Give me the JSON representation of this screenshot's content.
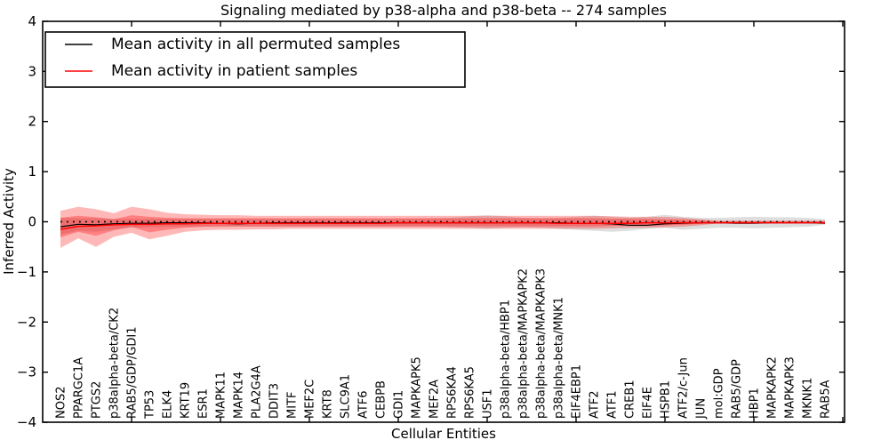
{
  "chart_data": {
    "type": "line",
    "title": "Signaling mediated by p38-alpha and p38-beta -- 274 samples",
    "xlabel": "Cellular Entities",
    "ylabel": "Inferred Activity",
    "ylim": [
      -4,
      4
    ],
    "xlim": [
      0,
      45.1
    ],
    "grid": false,
    "legend_position": "upper left",
    "y_tick_values": [
      -4,
      -3,
      -2,
      -1,
      0,
      1,
      2,
      3,
      4
    ],
    "y_tick_labels": [
      "−4",
      "−3",
      "−2",
      "−1",
      "0",
      "1",
      "2",
      "3",
      "4"
    ],
    "x_tick_values": [
      5,
      10,
      15,
      20,
      25,
      30,
      35,
      40,
      45
    ],
    "categories": [
      "NOS2",
      "PPARGC1A",
      "PTGS2",
      "p38alpha-beta/CK2",
      "RAB5/GDP/GDI1",
      "TP53",
      "ELK4",
      "KRT19",
      "ESR1",
      "MAPK11",
      "MAPK14",
      "PLA2G4A",
      "DDIT3",
      "MITF",
      "MEF2C",
      "KRT8",
      "SLC9A1",
      "ATF6",
      "CEBPB",
      "GDI1",
      "MAPKAPK5",
      "MEF2A",
      "RPS6KA4",
      "RPS6KA5",
      "USF1",
      "p38alpha-beta/HBP1",
      "p38alpha-beta/MAPKAPK2",
      "p38alpha-beta/MAPKAPK3",
      "p38alpha-beta/MNK1",
      "EIF4EBP1",
      "ATF2",
      "ATF1",
      "CREB1",
      "EIF4E",
      "HSPB1",
      "ATF2/c-Jun",
      "JUN",
      "mol:GDP",
      "RAB5/GDP",
      "HBP1",
      "MAPKAPK2",
      "MAPKAPK3",
      "MKNK1",
      "RAB5A"
    ],
    "zero_line": {
      "value": 0,
      "color": "#000000",
      "style": "dotted"
    },
    "series": [
      {
        "name": "Mean activity in all permuted samples",
        "color": "#000000",
        "style": "solid",
        "values": [
          -0.1,
          -0.05,
          -0.06,
          -0.04,
          -0.03,
          -0.03,
          -0.02,
          -0.02,
          -0.02,
          -0.03,
          -0.04,
          -0.03,
          -0.02,
          -0.02,
          -0.02,
          -0.02,
          -0.02,
          -0.02,
          -0.02,
          -0.02,
          -0.02,
          -0.02,
          -0.02,
          -0.02,
          -0.02,
          -0.02,
          -0.02,
          -0.02,
          -0.02,
          -0.03,
          -0.03,
          -0.04,
          -0.07,
          -0.07,
          -0.04,
          -0.03,
          -0.02,
          -0.02,
          -0.03,
          -0.03,
          -0.02,
          -0.02,
          -0.02,
          -0.03
        ]
      },
      {
        "name": "Mean activity in patient samples",
        "color": "#ff0000",
        "style": "solid",
        "values": [
          -0.15,
          -0.09,
          -0.08,
          -0.06,
          -0.05,
          -0.05,
          -0.04,
          -0.04,
          -0.03,
          -0.03,
          -0.03,
          -0.03,
          -0.03,
          -0.03,
          -0.03,
          -0.03,
          -0.03,
          -0.03,
          -0.03,
          -0.02,
          -0.02,
          -0.02,
          -0.02,
          -0.02,
          -0.02,
          -0.02,
          -0.02,
          -0.02,
          -0.03,
          -0.03,
          -0.03,
          -0.03,
          -0.03,
          -0.02,
          -0.02,
          -0.02,
          -0.02,
          -0.02,
          -0.02,
          -0.02,
          -0.02,
          -0.02,
          -0.02,
          -0.02
        ]
      }
    ],
    "bands": [
      {
        "name": "permuted-samples-spread",
        "color": "rgba(0,0,0,0.13)",
        "upper": [
          0.08,
          0.07,
          0.07,
          0.06,
          0.06,
          0.06,
          0.06,
          0.06,
          0.06,
          0.06,
          0.06,
          0.06,
          0.06,
          0.06,
          0.06,
          0.06,
          0.06,
          0.06,
          0.06,
          0.06,
          0.06,
          0.07,
          0.08,
          0.11,
          0.13,
          0.11,
          0.08,
          0.07,
          0.08,
          0.1,
          0.12,
          0.1,
          0.08,
          0.1,
          0.14,
          0.1,
          0.08,
          0.08,
          0.09,
          0.1,
          0.09,
          0.09,
          0.08,
          0.05
        ],
        "lower": [
          -0.26,
          -0.18,
          -0.2,
          -0.15,
          -0.12,
          -0.11,
          -0.1,
          -0.1,
          -0.1,
          -0.1,
          -0.1,
          -0.1,
          -0.1,
          -0.1,
          -0.1,
          -0.1,
          -0.1,
          -0.1,
          -0.1,
          -0.1,
          -0.1,
          -0.1,
          -0.11,
          -0.12,
          -0.14,
          -0.12,
          -0.11,
          -0.12,
          -0.14,
          -0.16,
          -0.18,
          -0.2,
          -0.18,
          -0.14,
          -0.12,
          -0.16,
          -0.14,
          -0.12,
          -0.12,
          -0.13,
          -0.12,
          -0.11,
          -0.1,
          -0.06
        ]
      },
      {
        "name": "patient-samples-spread-outer",
        "color": "rgba(255,0,0,0.28)",
        "upper": [
          0.22,
          0.3,
          0.25,
          0.17,
          0.3,
          0.25,
          0.18,
          0.15,
          0.14,
          0.13,
          0.13,
          0.12,
          0.12,
          0.12,
          0.12,
          0.12,
          0.12,
          0.12,
          0.12,
          0.12,
          0.12,
          0.12,
          0.12,
          0.12,
          0.12,
          0.12,
          0.12,
          0.12,
          0.12,
          0.12,
          0.12,
          0.11,
          0.1,
          0.1,
          0.1,
          0.08,
          0.05,
          0.02,
          0.02,
          0.02,
          0.02,
          0.02,
          0.02,
          0.02
        ],
        "lower": [
          -0.52,
          -0.33,
          -0.5,
          -0.3,
          -0.22,
          -0.35,
          -0.28,
          -0.2,
          -0.17,
          -0.16,
          -0.16,
          -0.15,
          -0.15,
          -0.14,
          -0.14,
          -0.14,
          -0.14,
          -0.14,
          -0.14,
          -0.14,
          -0.14,
          -0.14,
          -0.14,
          -0.14,
          -0.14,
          -0.14,
          -0.14,
          -0.14,
          -0.14,
          -0.14,
          -0.14,
          -0.13,
          -0.12,
          -0.12,
          -0.11,
          -0.1,
          -0.07,
          -0.03,
          -0.03,
          -0.03,
          -0.03,
          -0.03,
          -0.03,
          -0.03
        ]
      },
      {
        "name": "patient-samples-spread-inner",
        "color": "rgba(255,0,0,0.30)",
        "upper": [
          0.08,
          0.12,
          0.09,
          0.05,
          0.13,
          0.1,
          0.08,
          0.07,
          0.07,
          0.07,
          0.07,
          0.07,
          0.07,
          0.07,
          0.07,
          0.07,
          0.07,
          0.07,
          0.07,
          0.07,
          0.07,
          0.07,
          0.07,
          0.07,
          0.07,
          0.07,
          0.07,
          0.07,
          0.07,
          0.07,
          0.07,
          0.06,
          0.06,
          0.06,
          0.05,
          0.04,
          0.03,
          0.01,
          0.01,
          0.01,
          0.01,
          0.01,
          0.01,
          0.01
        ],
        "lower": [
          -0.31,
          -0.2,
          -0.28,
          -0.17,
          -0.1,
          -0.21,
          -0.16,
          -0.12,
          -0.1,
          -0.09,
          -0.09,
          -0.09,
          -0.09,
          -0.09,
          -0.09,
          -0.09,
          -0.09,
          -0.09,
          -0.09,
          -0.09,
          -0.09,
          -0.09,
          -0.09,
          -0.09,
          -0.09,
          -0.09,
          -0.09,
          -0.09,
          -0.09,
          -0.09,
          -0.09,
          -0.08,
          -0.08,
          -0.08,
          -0.07,
          -0.06,
          -0.04,
          -0.02,
          -0.02,
          -0.02,
          -0.02,
          -0.02,
          -0.02,
          -0.02
        ]
      }
    ],
    "legend": [
      {
        "label": "Mean activity in all permuted samples",
        "color": "#000000"
      },
      {
        "label": "Mean activity in patient samples",
        "color": "#ff0000"
      }
    ]
  }
}
